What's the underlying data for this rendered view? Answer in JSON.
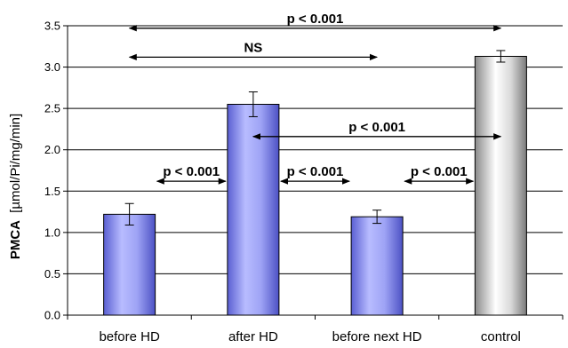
{
  "chart_data": {
    "type": "bar",
    "categories": [
      "before HD",
      "after HD",
      "before next HD",
      "control"
    ],
    "values": [
      1.22,
      2.55,
      1.19,
      3.13
    ],
    "errors": [
      0.13,
      0.15,
      0.08,
      0.07
    ],
    "bar_styles": [
      "blue",
      "blue",
      "blue",
      "gray"
    ],
    "ylabel_bold": "PMCA",
    "ylabel_rest": "[µmol/Pi/mg/min]",
    "ylim": [
      0,
      3.5
    ],
    "yticks": [
      "0.0",
      "0.5",
      "1.0",
      "1.5",
      "2.0",
      "2.5",
      "3.0",
      "3.5"
    ],
    "grid": true,
    "annotations": [
      {
        "label": "p < 0.001",
        "from": 0,
        "to": 3,
        "y": 3.47
      },
      {
        "label": "NS",
        "from": 0,
        "to": 2,
        "y": 3.12
      },
      {
        "label": "p < 0.001",
        "from": 1,
        "to": 3,
        "y": 2.16
      },
      {
        "label": "p < 0.001",
        "from": 0,
        "to": 1,
        "y": 1.62
      },
      {
        "label": "p < 0.001",
        "from": 1,
        "to": 2,
        "y": 1.62
      },
      {
        "label": "p < 0.001",
        "from": 2,
        "to": 3,
        "y": 1.62
      }
    ]
  },
  "colors": {
    "bar_blue_light": "#b4b8ff",
    "bar_blue_dark": "#5a5fd2",
    "bar_gray_light": "#f4f4f4",
    "bar_gray_dark": "#8a8a8a"
  }
}
